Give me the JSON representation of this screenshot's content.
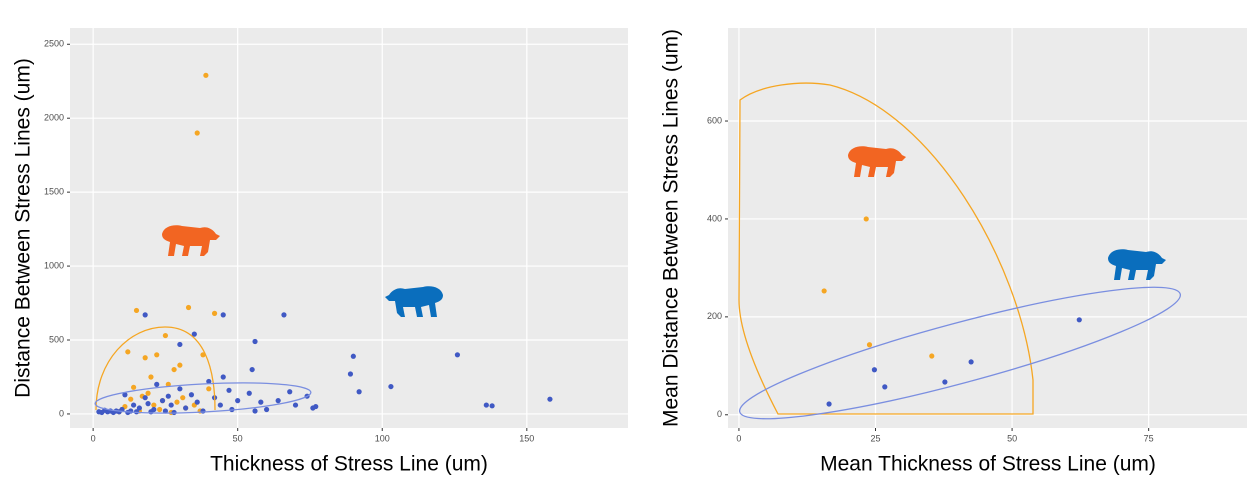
{
  "chart_data": [
    {
      "type": "scatter",
      "x_label": "Thickness of Stress Line (um)",
      "y_label": "Distance Between Stress Lines (um)",
      "xlim": [
        -8,
        185
      ],
      "ylim": [
        -95,
        2610
      ],
      "xticks": [
        0,
        50,
        100,
        150
      ],
      "yticks": [
        0,
        500,
        1000,
        1500,
        2000,
        2500
      ],
      "grid": true,
      "series": [
        {
          "color": "#f5a623",
          "x": [
            39,
            36,
            33,
            42,
            15,
            38,
            22,
            18,
            25,
            12,
            28,
            20,
            14,
            40,
            30,
            17,
            24,
            35,
            10,
            26,
            19,
            13,
            32,
            21,
            16,
            29,
            11,
            23,
            27,
            9,
            37,
            31
          ],
          "values": [
            2290,
            1900,
            720,
            680,
            700,
            400,
            400,
            380,
            530,
            420,
            300,
            250,
            180,
            170,
            330,
            120,
            90,
            60,
            30,
            200,
            140,
            100,
            40,
            60,
            20,
            80,
            50,
            30,
            10,
            15,
            20,
            110
          ]
        },
        {
          "color": "#4059c4",
          "x": [
            158,
            138,
            136,
            126,
            103,
            92,
            90,
            89,
            77,
            76,
            74,
            70,
            68,
            66,
            64,
            60,
            58,
            56,
            56,
            55,
            54,
            50,
            48,
            47,
            45,
            45,
            44,
            42,
            40,
            38,
            36,
            35,
            34,
            32,
            30,
            30,
            28,
            27,
            26,
            25,
            24,
            22,
            21,
            20,
            19,
            18,
            18,
            16,
            15,
            14,
            13,
            12,
            11,
            10,
            9,
            8,
            7,
            6,
            5,
            4,
            3,
            2
          ],
          "values": [
            100,
            55,
            60,
            400,
            185,
            150,
            390,
            270,
            50,
            40,
            120,
            60,
            150,
            670,
            90,
            30,
            80,
            490,
            20,
            300,
            140,
            90,
            30,
            160,
            670,
            250,
            60,
            110,
            220,
            20,
            80,
            540,
            130,
            40,
            470,
            170,
            10,
            60,
            120,
            20,
            90,
            200,
            30,
            15,
            70,
            670,
            110,
            40,
            15,
            60,
            20,
            10,
            130,
            30,
            15,
            20,
            10,
            20,
            15,
            25,
            10,
            15
          ]
        }
      ]
    },
    {
      "type": "scatter",
      "x_label": "Mean Thickness of Stress Line (um)",
      "y_label": "Mean Distance Between Stress Lines (um)",
      "xlim": [
        -2,
        93
      ],
      "ylim": [
        -27,
        790
      ],
      "xticks": [
        0,
        25,
        50,
        75
      ],
      "yticks": [
        0,
        200,
        400,
        600
      ],
      "grid": true,
      "series": [
        {
          "color": "#f5a623",
          "x": [
            15.6,
            23.3,
            23.9,
            35.3
          ],
          "values": [
            253,
            400,
            143,
            120
          ]
        },
        {
          "color": "#4059c4",
          "x": [
            16.5,
            24.8,
            26.7,
            37.7,
            42.5,
            62.3
          ],
          "values": [
            22,
            92,
            57,
            67,
            108,
            194
          ]
        }
      ]
    }
  ]
}
